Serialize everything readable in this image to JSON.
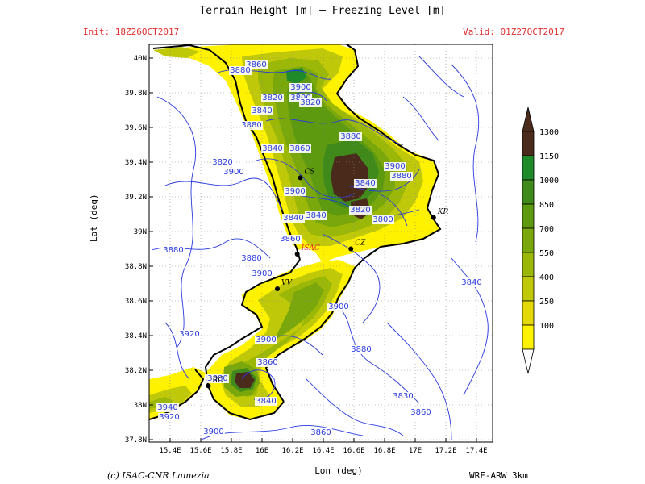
{
  "header": {
    "title": "Terrain Height [m] — Freezing Level [m]",
    "init": "Init: 18Z26OCT2017",
    "valid": "Valid: 01Z27OCT2017"
  },
  "axes": {
    "xlabel": "Lon (deg)",
    "ylabel": "Lat (deg)",
    "x_ticks": [
      "15.4E",
      "15.6E",
      "15.8E",
      "16E",
      "16.2E",
      "16.4E",
      "16.6E",
      "16.8E",
      "17E",
      "17.2E",
      "17.4E"
    ],
    "y_ticks": [
      "40N",
      "39.8N",
      "39.6N",
      "39.4N",
      "39.2N",
      "39N",
      "38.8N",
      "38.6N",
      "38.4N",
      "38.2N",
      "38N",
      "37.8N"
    ]
  },
  "colorbar": {
    "labels": [
      "1300",
      "1150",
      "1000",
      "850",
      "700",
      "550",
      "400",
      "250",
      "100"
    ],
    "colors": [
      "#4a2a1a",
      "#1e8a2a",
      "#3f8a1a",
      "#5e9a10",
      "#7aa80c",
      "#9bb808",
      "#c0c80a",
      "#e4d808",
      "#fff200"
    ]
  },
  "cities": [
    {
      "code": "CS",
      "lon": 16.25,
      "lat": 39.31
    },
    {
      "code": "KR",
      "lon": 17.12,
      "lat": 39.08
    },
    {
      "code": "CZ",
      "lon": 16.58,
      "lat": 38.9
    },
    {
      "code": "ISAC",
      "lon": 16.23,
      "lat": 38.87
    },
    {
      "code": "VV",
      "lon": 16.1,
      "lat": 38.67
    },
    {
      "code": "RC",
      "lon": 15.65,
      "lat": 38.11
    }
  ],
  "contour_labels": [
    "3860",
    "3880",
    "3900",
    "3800",
    "3820",
    "3840",
    "3880",
    "3820",
    "3840",
    "3860",
    "3880",
    "3900",
    "3880",
    "3840",
    "3900",
    "3840",
    "3840",
    "3820",
    "3800",
    "3860",
    "3880",
    "3900",
    "3900",
    "3900",
    "3820",
    "3880",
    "3920",
    "3900",
    "3880",
    "3860",
    "3880",
    "3840",
    "3920",
    "3940",
    "3900",
    "3860",
    "3830",
    "3860",
    "3840"
  ],
  "footer": {
    "copyright": "(c) ISAC-CNR Lamezia",
    "model": "WRF-ARW 3km"
  }
}
